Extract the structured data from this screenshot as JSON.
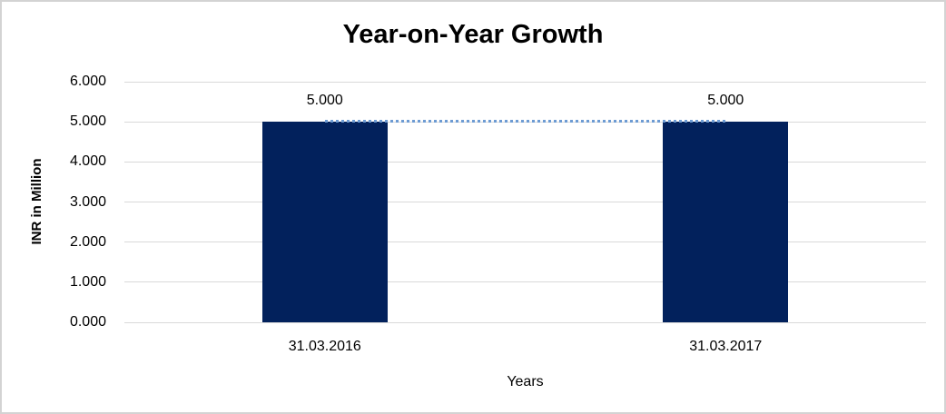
{
  "chart_data": {
    "type": "bar",
    "title": "Year-on-Year Growth",
    "xlabel": "Years",
    "ylabel": "INR in Million",
    "categories": [
      "31.03.2016",
      "31.03.2017"
    ],
    "values": [
      5.0,
      5.0
    ],
    "data_labels": [
      "5.000",
      "5.000"
    ],
    "ylim": [
      0,
      6
    ],
    "yticks": [
      {
        "value": 0,
        "label": "0.000"
      },
      {
        "value": 1,
        "label": "1.000"
      },
      {
        "value": 2,
        "label": "2.000"
      },
      {
        "value": 3,
        "label": "3.000"
      },
      {
        "value": 4,
        "label": "4.000"
      },
      {
        "value": 5,
        "label": "5.000"
      },
      {
        "value": 6,
        "label": "6.000"
      }
    ],
    "grid": true,
    "legend": "none",
    "trendline": {
      "style": "dotted",
      "value": 5.0,
      "from_category": 0,
      "to_category": 1
    },
    "colors": {
      "bar": "#02215C",
      "gridline": "#D9D9D9",
      "trendline": "#6D9BD3",
      "text": "#000000",
      "chart_border": "#D3D3D3",
      "background": "#FFFFFF"
    }
  }
}
